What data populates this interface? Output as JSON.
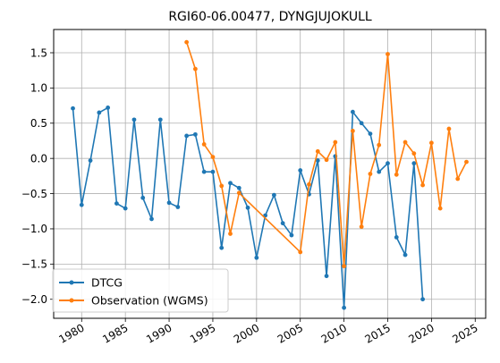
{
  "chart_data": {
    "type": "line",
    "title": "RGI60-06.00477, DYNGJUJOKULL",
    "xlabel": "",
    "ylabel": "",
    "xlim": [
      1976.8,
      2026.2
    ],
    "ylim": [
      -2.27,
      1.83
    ],
    "x_ticks": [
      1980,
      1985,
      1990,
      1995,
      2000,
      2005,
      2010,
      2015,
      2020,
      2025
    ],
    "x_tick_labels": [
      "1980",
      "1985",
      "1990",
      "1995",
      "2000",
      "2005",
      "2010",
      "2015",
      "2020",
      "2025"
    ],
    "y_ticks": [
      -2.0,
      -1.5,
      -1.0,
      -0.5,
      0.0,
      0.5,
      1.0,
      1.5
    ],
    "y_tick_labels": [
      "−2.0",
      "−1.5",
      "−1.0",
      "−0.5",
      "0.0",
      "0.5",
      "1.0",
      "1.5"
    ],
    "grid": true,
    "legend_position": "lower-left",
    "series": [
      {
        "name": "DTCG",
        "color": "#1f77b4",
        "x": [
          1979,
          1980,
          1981,
          1982,
          1983,
          1984,
          1985,
          1986,
          1987,
          1988,
          1989,
          1990,
          1991,
          1992,
          1993,
          1994,
          1995,
          1996,
          1997,
          1998,
          1999,
          2000,
          2001,
          2002,
          2003,
          2004,
          2005,
          2006,
          2007,
          2008,
          2009,
          2010,
          2011,
          2012,
          2013,
          2014,
          2015,
          2016,
          2017,
          2018,
          2019
        ],
        "y": [
          0.71,
          -0.66,
          -0.03,
          0.65,
          0.72,
          -0.64,
          -0.71,
          0.55,
          -0.56,
          -0.86,
          0.55,
          -0.63,
          -0.69,
          0.32,
          0.34,
          -0.19,
          -0.19,
          -1.27,
          -0.35,
          -0.42,
          -0.7,
          -1.41,
          -0.81,
          -0.52,
          -0.92,
          -1.09,
          -0.17,
          -0.51,
          -0.03,
          -1.67,
          0.03,
          -2.12,
          0.66,
          0.5,
          0.35,
          -0.19,
          -0.07,
          -1.12,
          -1.37,
          -0.07,
          -2.0
        ]
      },
      {
        "name": "Observation (WGMS)",
        "color": "#ff7f0e",
        "x": [
          1992,
          1993,
          1994,
          1995,
          1996,
          1997,
          1998,
          2005,
          2006,
          2007,
          2008,
          2009,
          2010,
          2011,
          2012,
          2013,
          2014,
          2015,
          2016,
          2017,
          2018,
          2019,
          2020,
          2021,
          2022,
          2023,
          2024
        ],
        "y": [
          1.65,
          1.27,
          0.2,
          0.02,
          -0.39,
          -1.07,
          -0.49,
          -1.33,
          -0.37,
          0.1,
          -0.02,
          0.23,
          -1.53,
          0.39,
          -0.97,
          -0.22,
          0.19,
          1.48,
          -0.23,
          0.23,
          0.07,
          -0.38,
          0.22,
          -0.71,
          0.42,
          -0.29,
          -0.05
        ]
      }
    ]
  }
}
